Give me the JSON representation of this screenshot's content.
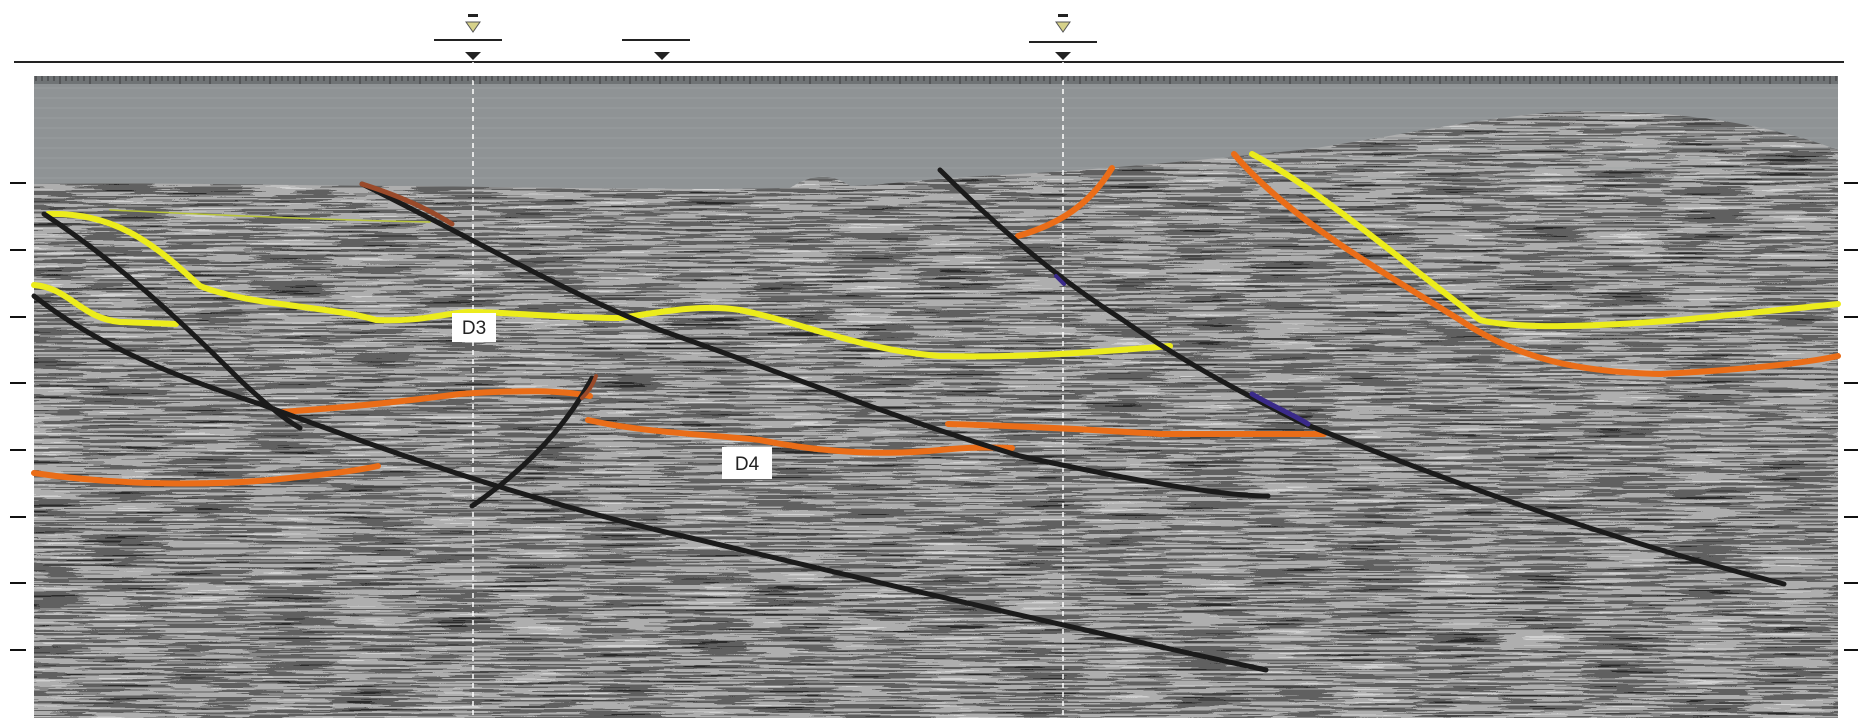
{
  "section": {
    "labels": [
      {
        "id": "d3",
        "text": "D3"
      },
      {
        "id": "d4",
        "text": "D4"
      }
    ]
  },
  "colors": {
    "background": "#ffffff",
    "seismic_gray": "#9a9a9a",
    "water_column": "#8f9395",
    "fault": "#1b1b1b",
    "horizon_yellow": "#ecec1c",
    "horizon_orange": "#ea6d18",
    "fault_brown": "#9a4a2a",
    "fault_purple": "#3a2a8a",
    "well_marker": "#d7d28a"
  },
  "interpretation": {
    "faults": [
      {
        "id": "fault-1",
        "icon": "fault-line"
      },
      {
        "id": "fault-2",
        "icon": "fault-line"
      },
      {
        "id": "fault-3",
        "icon": "fault-line"
      },
      {
        "id": "fault-4",
        "icon": "fault-line"
      },
      {
        "id": "fault-5",
        "icon": "fault-line"
      }
    ],
    "horizons": [
      {
        "id": "horizon-d3",
        "color_key": "horizon_yellow"
      },
      {
        "id": "horizon-d4",
        "color_key": "horizon_orange"
      }
    ],
    "wells": [
      {
        "id": "well-1",
        "icon": "well-triangle-icon"
      },
      {
        "id": "well-2",
        "icon": "well-flat-marker"
      },
      {
        "id": "well-3",
        "icon": "well-triangle-icon"
      }
    ]
  }
}
